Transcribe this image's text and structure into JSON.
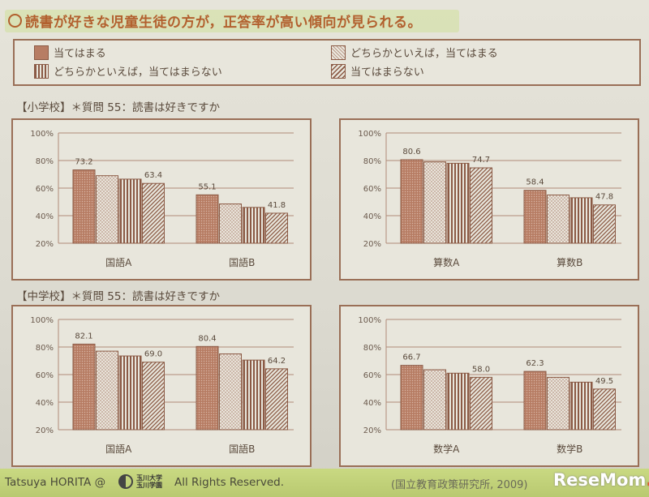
{
  "title": "読書が好きな児童生徒の方が，正答率が高い傾向が見られる。",
  "legend": [
    {
      "label": "当てはまる",
      "pattern": "dots"
    },
    {
      "label": "どちらかといえば，当てはまる",
      "pattern": "fine"
    },
    {
      "label": "どちらかといえば，当てはまらない",
      "pattern": "vlines"
    },
    {
      "label": "当てはまらない",
      "pattern": "diag"
    }
  ],
  "sections": {
    "elementary": "【小学校】＊質問 55：読書は好きですか",
    "junior_high": "【中学校】＊質問 55：読書は好きですか"
  },
  "colors": {
    "bar_stroke": "#8b5a45",
    "grid": "#b08a78",
    "accent": "#b2602e",
    "footer": "#c5d57e"
  },
  "chart_data": [
    {
      "type": "bar",
      "categories": [
        "国語A",
        "国語B"
      ],
      "series": [
        {
          "name": "当てはまる",
          "values": [
            73.2,
            55.1
          ]
        },
        {
          "name": "どちらかといえば，当てはまる",
          "values": [
            69,
            48.5
          ]
        },
        {
          "name": "どちらかといえば，当てはまらない",
          "values": [
            66.5,
            46
          ]
        },
        {
          "name": "当てはまらない",
          "values": [
            63.4,
            41.8
          ]
        }
      ],
      "labels": [
        [
          "73.2",
          "",
          "",
          "63.4"
        ],
        [
          "55.1",
          "",
          "",
          "41.8"
        ]
      ],
      "yticks": [
        "20%",
        "40%",
        "60%",
        "80%",
        "100%"
      ],
      "ylim": [
        20,
        100
      ]
    },
    {
      "type": "bar",
      "categories": [
        "算数A",
        "算数B"
      ],
      "series": [
        {
          "name": "当てはまる",
          "values": [
            80.6,
            58.4
          ]
        },
        {
          "name": "どちらかといえば，当てはまる",
          "values": [
            79,
            55
          ]
        },
        {
          "name": "どちらかといえば，当てはまらない",
          "values": [
            78,
            53
          ]
        },
        {
          "name": "当てはまらない",
          "values": [
            74.7,
            47.8
          ]
        }
      ],
      "labels": [
        [
          "80.6",
          "",
          "",
          "74.7"
        ],
        [
          "58.4",
          "",
          "",
          "47.8"
        ]
      ],
      "yticks": [
        "20%",
        "40%",
        "60%",
        "80%",
        "100%"
      ],
      "ylim": [
        20,
        100
      ]
    },
    {
      "type": "bar",
      "categories": [
        "国語A",
        "国語B"
      ],
      "series": [
        {
          "name": "当てはまる",
          "values": [
            82.1,
            80.4
          ]
        },
        {
          "name": "どちらかといえば，当てはまる",
          "values": [
            77,
            75
          ]
        },
        {
          "name": "どちらかといえば，当てはまらない",
          "values": [
            73.5,
            70.5
          ]
        },
        {
          "name": "当てはまらない",
          "values": [
            69.0,
            64.2
          ]
        }
      ],
      "labels": [
        [
          "82.1",
          "",
          "",
          "69.0"
        ],
        [
          "80.4",
          "",
          "",
          "64.2"
        ]
      ],
      "yticks": [
        "20%",
        "40%",
        "60%",
        "80%",
        "100%"
      ],
      "ylim": [
        20,
        100
      ]
    },
    {
      "type": "bar",
      "categories": [
        "数学A",
        "数学B"
      ],
      "series": [
        {
          "name": "当てはまる",
          "values": [
            66.7,
            62.3
          ]
        },
        {
          "name": "どちらかといえば，当てはまる",
          "values": [
            63.5,
            58
          ]
        },
        {
          "name": "どちらかといえば，当てはまらない",
          "values": [
            61,
            54.5
          ]
        },
        {
          "name": "当てはまらない",
          "values": [
            58.0,
            49.5
          ]
        }
      ],
      "labels": [
        [
          "66.7",
          "",
          "",
          "58.0"
        ],
        [
          "62.3",
          "",
          "",
          "49.5"
        ]
      ],
      "yticks": [
        "20%",
        "40%",
        "60%",
        "80%",
        "100%"
      ],
      "ylim": [
        20,
        100
      ]
    }
  ],
  "footer": {
    "author": "Tatsuya HORITA @",
    "university_line1": "玉川大学",
    "university_line2": "玉川学園",
    "rights": "All Rights Reserved.",
    "source": "(国立教育政策研究所, 2009)"
  },
  "watermark": {
    "main": "ReseMom",
    "dot": "."
  }
}
